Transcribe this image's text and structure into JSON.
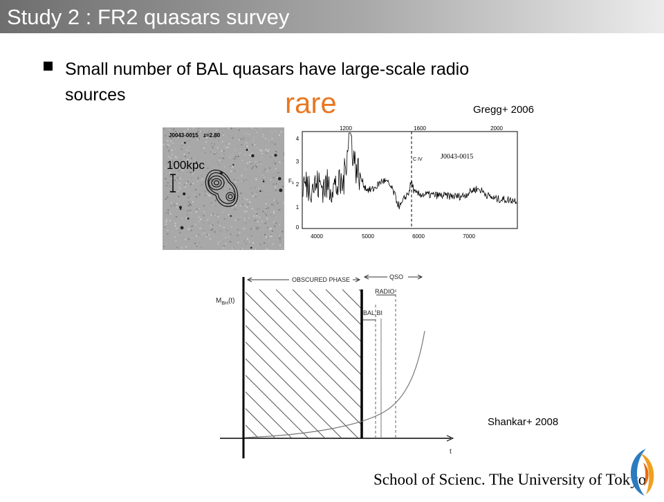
{
  "header": {
    "title": "Study 2 : FR2 quasars survey"
  },
  "bullet": {
    "text_line1": "Small number of BAL quasars have large-scale radio",
    "text_line2": "sources"
  },
  "emphasis": "rare",
  "figure_top": {
    "citation": "Gregg+ 2006",
    "radio_image": {
      "object": "J0043-0015",
      "redshift": "z=2.80",
      "scale": "100kpc"
    },
    "spectrum": {
      "object": "J0043-0015",
      "line_label": "C IV",
      "y_label_main": "F",
      "y_label_sub": "λ",
      "top_ticks": [
        "1200",
        "1600",
        "2000"
      ],
      "bottom_ticks": [
        "4000",
        "5000",
        "6000",
        "7000"
      ],
      "y_ticks": [
        "4",
        "3",
        "2",
        "1",
        "0"
      ]
    }
  },
  "figure_bottom": {
    "citation": "Shankar+ 2008",
    "phase_obscured": "OBSCURED PHASE",
    "phase_qso": "QSO",
    "phase_radio": "RADIO",
    "phase_bal": "BAL,BI",
    "y_label_main": "M",
    "y_label_sub": "BH",
    "y_label_tail": "(t)",
    "x_label": "t"
  },
  "footer": {
    "institution": "School of Scienc. The University of Tokyo"
  }
}
